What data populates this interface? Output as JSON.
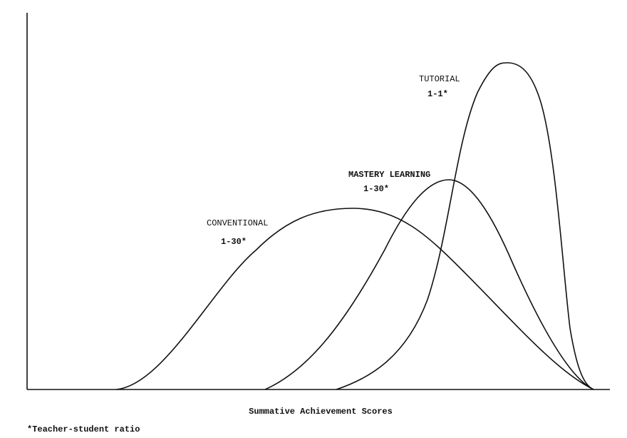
{
  "labels": {
    "tutorial": {
      "name": "TUTORIAL",
      "ratio": "1-1*"
    },
    "mastery": {
      "name": "MASTERY LEARNING",
      "ratio": "1-30*"
    },
    "conventional": {
      "name": "CONVENTIONAL",
      "ratio": "1-30*"
    }
  },
  "x_axis_label": "Summative Achievement Scores",
  "footnote": "*Teacher-student ratio"
}
